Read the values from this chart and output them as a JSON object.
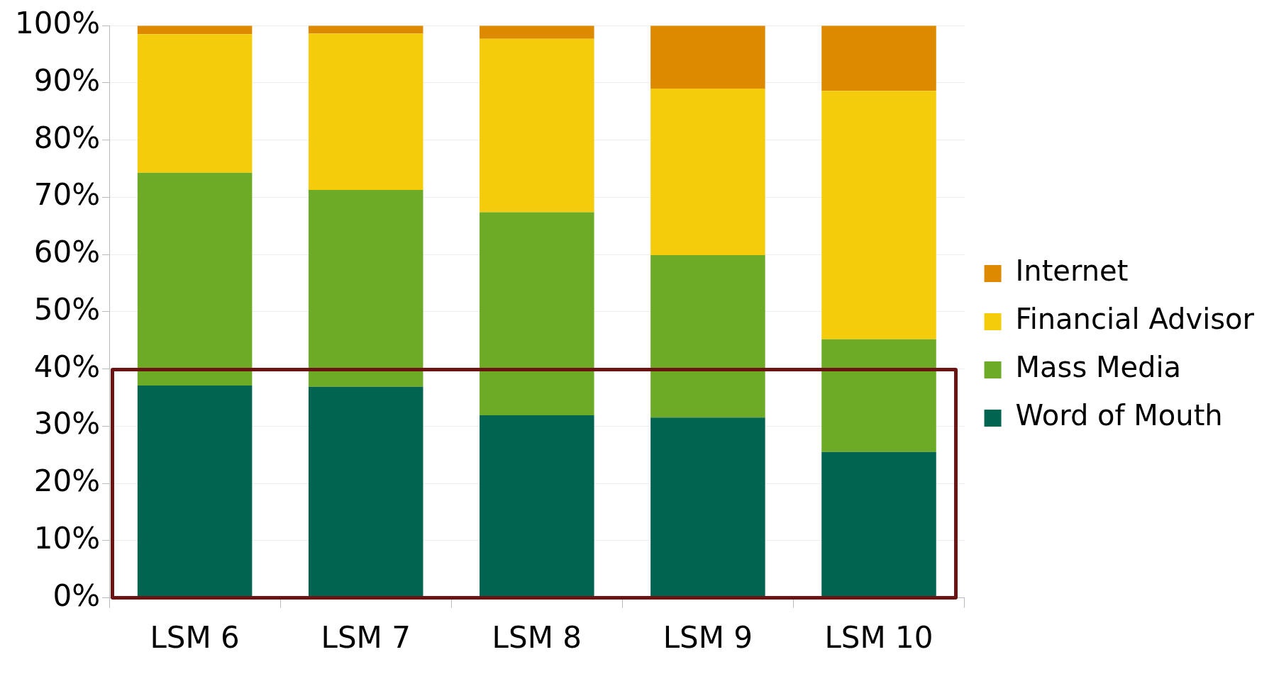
{
  "chart_data": {
    "type": "bar",
    "stacked": true,
    "categories": [
      "LSM 6",
      "LSM 7",
      "LSM 8",
      "LSM 9",
      "LSM 10"
    ],
    "series": [
      {
        "name": "Word of Mouth",
        "color": "#006450",
        "values": [
          37.1,
          36.9,
          31.9,
          31.5,
          25.5
        ]
      },
      {
        "name": "Mass Media",
        "color": "#6daa25",
        "values": [
          37.2,
          34.4,
          35.5,
          28.4,
          19.7
        ]
      },
      {
        "name": "Financial Advisor",
        "color": "#f5cc0c",
        "values": [
          24.2,
          27.3,
          30.3,
          29.1,
          43.4
        ]
      },
      {
        "name": "Internet",
        "color": "#de8a00",
        "values": [
          1.5,
          1.4,
          2.3,
          11.0,
          11.4
        ]
      }
    ],
    "ylim": [
      0,
      100
    ],
    "yticks": [
      {
        "value": 0,
        "label": "0%"
      },
      {
        "value": 10,
        "label": "10%"
      },
      {
        "value": 20,
        "label": "20%"
      },
      {
        "value": 30,
        "label": "30%"
      },
      {
        "value": 40,
        "label": "40%"
      },
      {
        "value": 50,
        "label": "50%"
      },
      {
        "value": 60,
        "label": "60%"
      },
      {
        "value": 70,
        "label": "70%"
      },
      {
        "value": 80,
        "label": "80%"
      },
      {
        "value": 90,
        "label": "90%"
      },
      {
        "value": 100,
        "label": "100%"
      }
    ],
    "grid": "y",
    "legend": "right"
  }
}
